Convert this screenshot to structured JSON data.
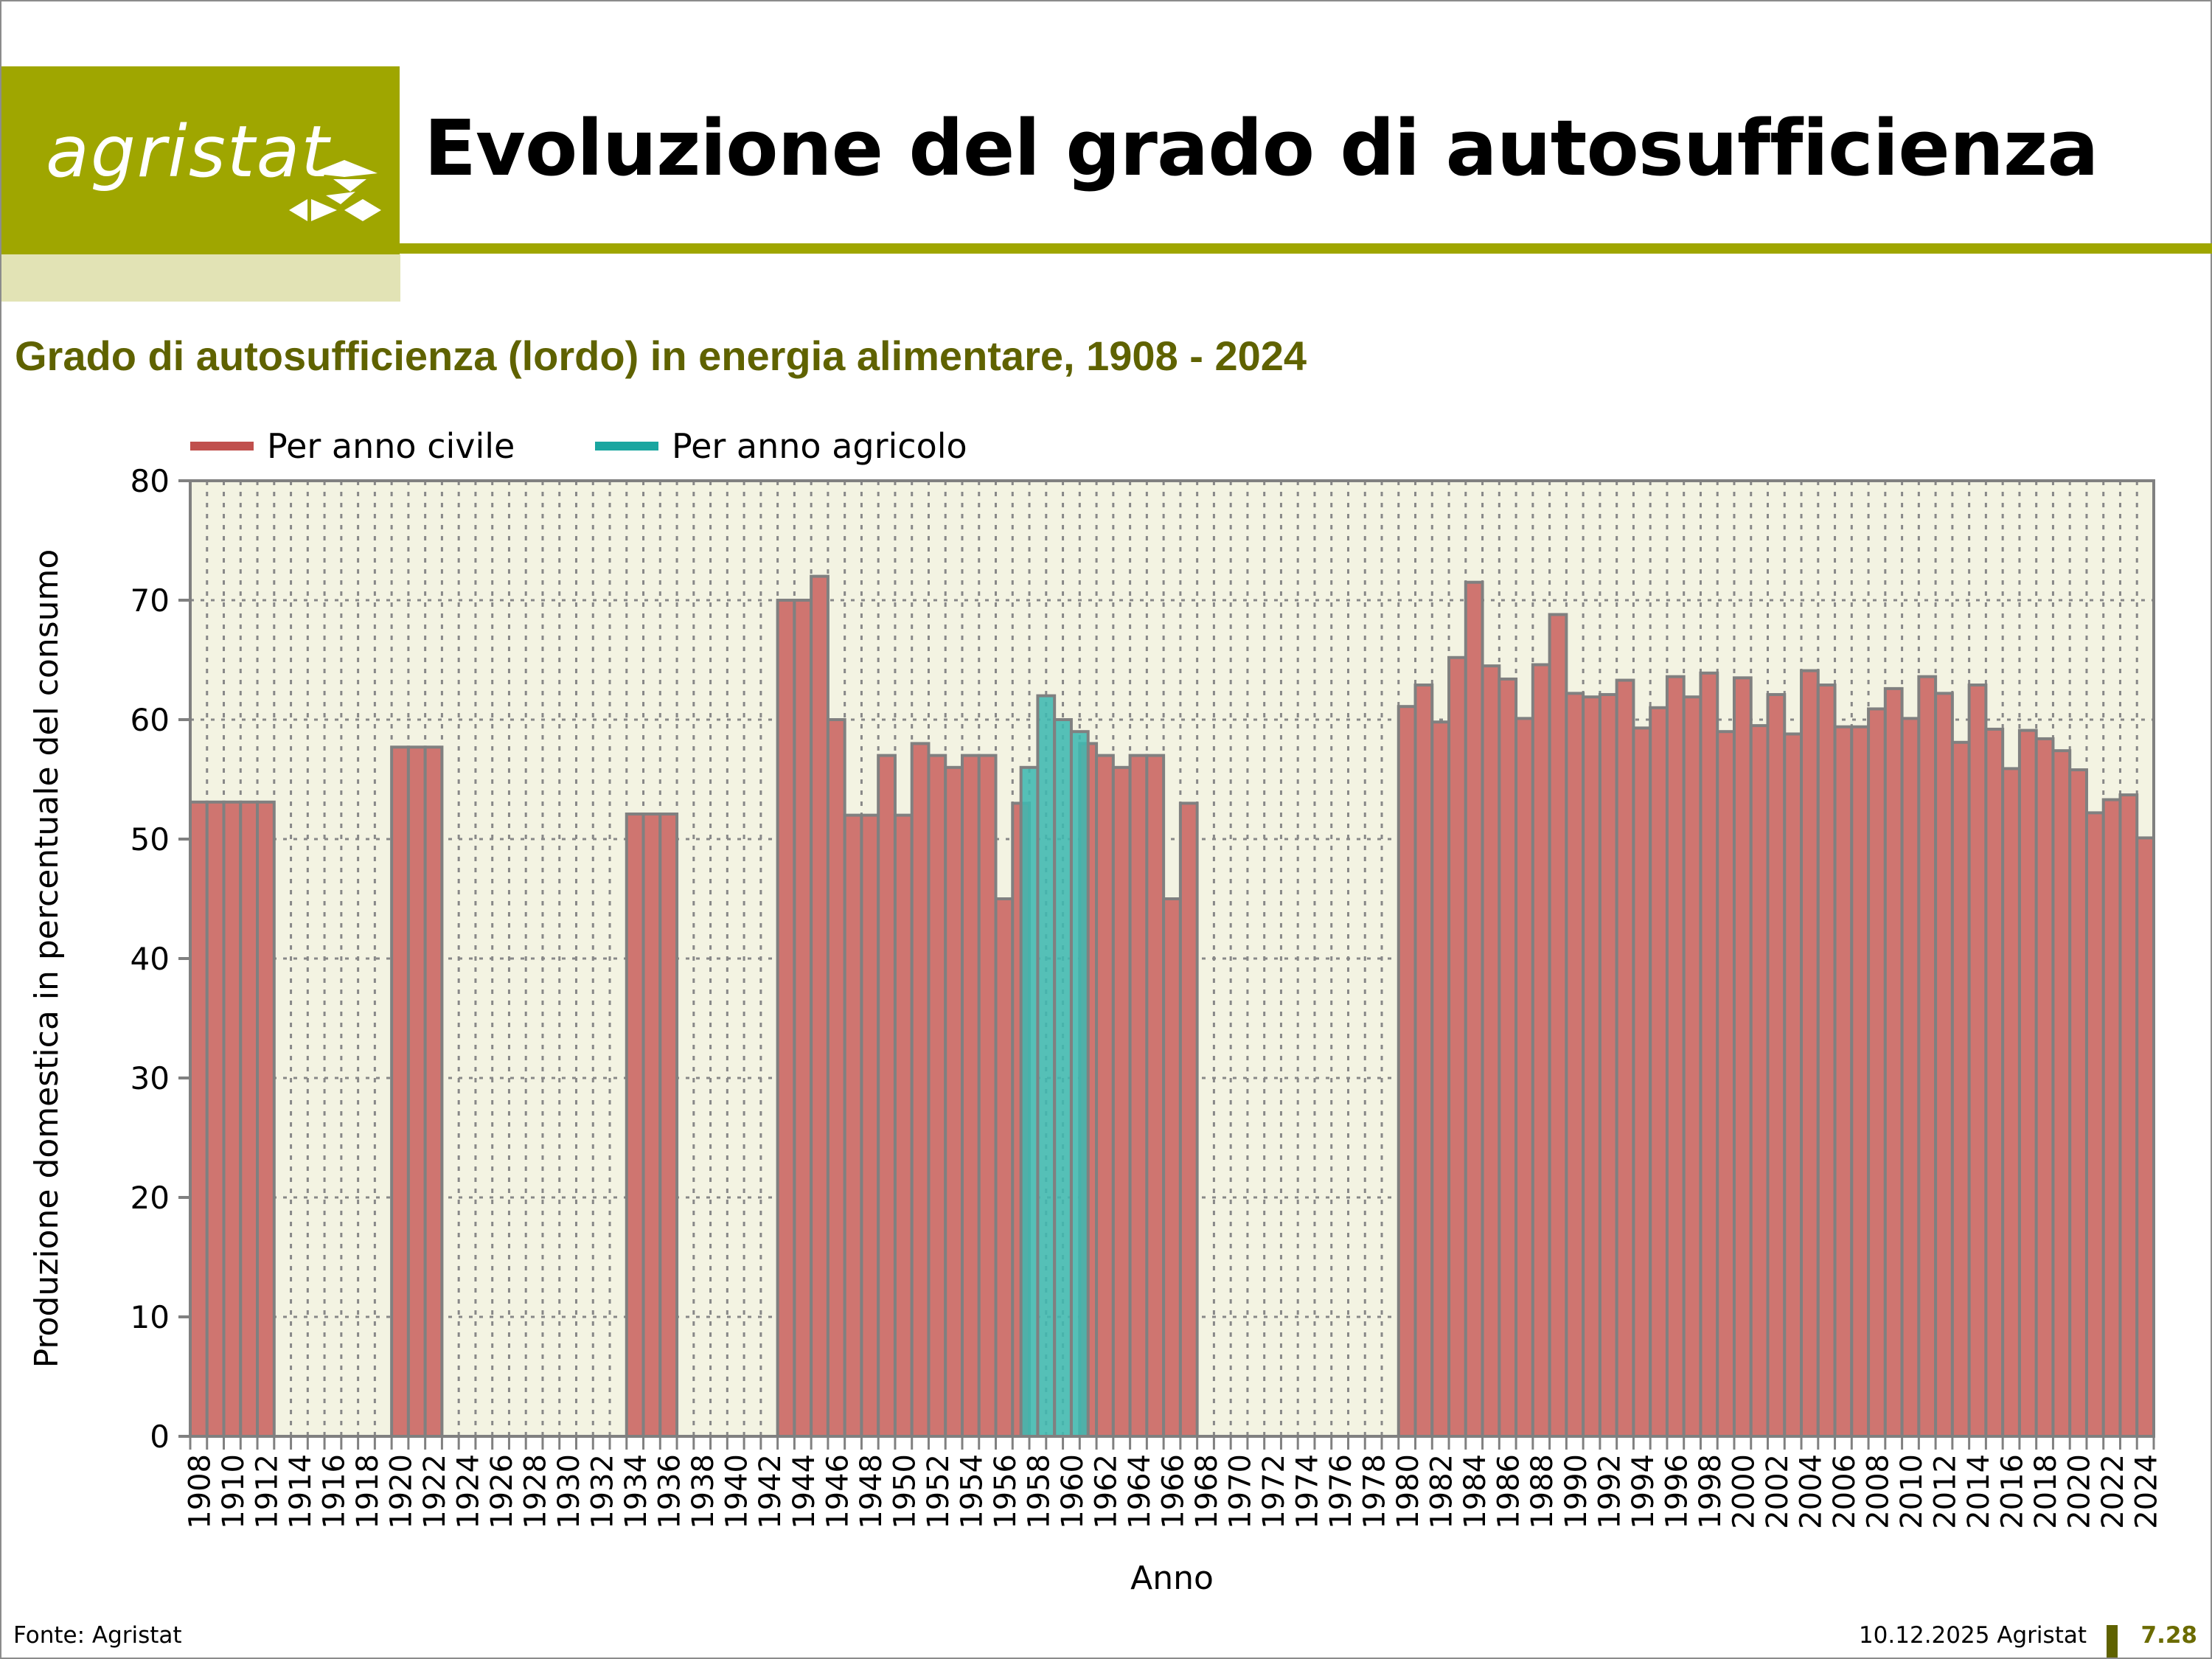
{
  "header": {
    "logo_text": "agristat",
    "title": "Evoluzione del grado di autosufficienza",
    "brand_color": "#9fa600"
  },
  "footer": {
    "source": "Fonte: Agristat",
    "date": "10.12.2025 Agristat",
    "page": "7.28"
  },
  "chart_data": {
    "type": "bar",
    "title": "Grado di autosufficienza (lordo) in energia alimentare, 1908 - 2024",
    "xlabel": "Anno",
    "ylabel": "Produzione domestica in percentuale del consumo",
    "ylim": [
      0,
      80
    ],
    "y_ticks": [
      "0",
      "10",
      "20",
      "30",
      "40",
      "50",
      "60",
      "70",
      "80"
    ],
    "grid": true,
    "legend_position": "top-left",
    "legend": [
      "Per anno civile",
      "Per anno agricolo"
    ],
    "x_start": 1908,
    "x_end": 2024,
    "x_tick_labels": [
      "1908",
      "1910",
      "1912",
      "1914",
      "1916",
      "1918",
      "1920",
      "1922",
      "1924",
      "1926",
      "1928",
      "1930",
      "1932",
      "1934",
      "1936",
      "1938",
      "1940",
      "1942",
      "1944",
      "1946",
      "1948",
      "1950",
      "1952",
      "1954",
      "1956",
      "1958",
      "1960",
      "1962",
      "1964",
      "1966",
      "1968",
      "1970",
      "1972",
      "1974",
      "1976",
      "1978",
      "1980",
      "1982",
      "1984",
      "1986",
      "1988",
      "1990",
      "1992",
      "1994",
      "1996",
      "1998",
      "2000",
      "2002",
      "2004",
      "2006",
      "2008",
      "2010",
      "2012",
      "2014",
      "2016",
      "2018",
      "2020",
      "2022",
      "2024"
    ],
    "series": [
      {
        "name": "Per anno civile",
        "color": "#cf7570",
        "legend_color": "#c0504d",
        "values": [
          53.1,
          53.1,
          53.1,
          53.1,
          53.1,
          null,
          null,
          null,
          null,
          null,
          null,
          null,
          57.7,
          57.7,
          57.7,
          null,
          null,
          null,
          null,
          null,
          null,
          null,
          null,
          null,
          null,
          null,
          52.1,
          52.1,
          52.1,
          null,
          null,
          null,
          null,
          null,
          null,
          70,
          70,
          72,
          60,
          52,
          52,
          57,
          52,
          58,
          57,
          56,
          57,
          57,
          45,
          53,
          null,
          null,
          null,
          58,
          57,
          56,
          57,
          57,
          45,
          53,
          null,
          null,
          null,
          null,
          null,
          null,
          null,
          null,
          null,
          null,
          null,
          null,
          61.1,
          62.9,
          59.8,
          65.2,
          71.5,
          64.5,
          63.4,
          60.1,
          64.6,
          68.8,
          62.2,
          61.9,
          62.1,
          63.3,
          59.3,
          61.0,
          63.6,
          61.9,
          63.9,
          59.0,
          63.5,
          59.5,
          62.1,
          58.8,
          64.1,
          62.9,
          59.4,
          59.4,
          60.9,
          62.6,
          60.1,
          63.6,
          62.2,
          58.1,
          62.9,
          59.2,
          55.9,
          59.1,
          58.4,
          57.4,
          55.8,
          52.2,
          53.3,
          53.7,
          50.1
        ]
      },
      {
        "name": "Per anno agricolo",
        "color": "#3fb8b0",
        "legend_color": "#1aa6a0",
        "categories": [
          "1957/58",
          "1958/59",
          "1959/60",
          "1960/61"
        ],
        "start_offset_year": 1957.5,
        "values": [
          56,
          62,
          60,
          59
        ]
      }
    ]
  }
}
